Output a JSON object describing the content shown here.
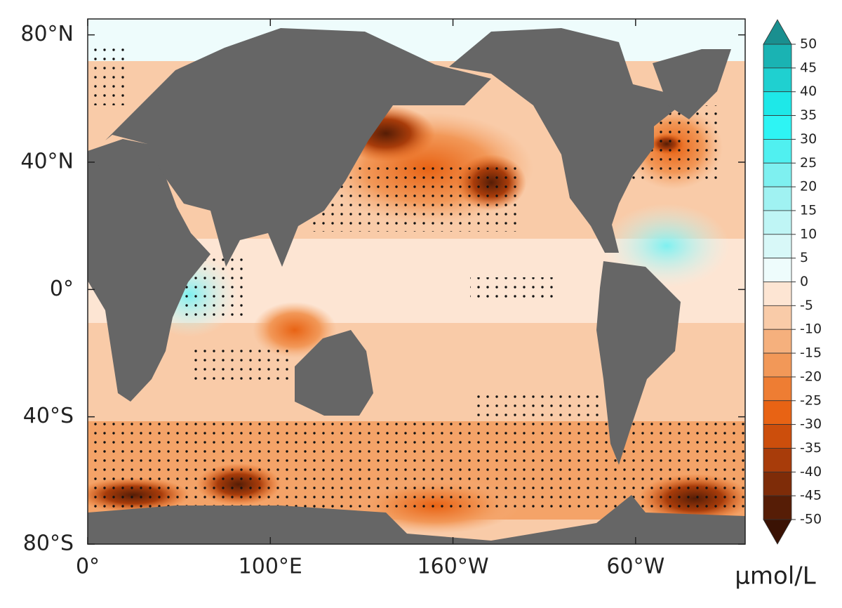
{
  "map": {
    "lat_lim": [
      -80,
      85
    ],
    "lon_lim": [
      0,
      360
    ],
    "lat_ticks": [
      {
        "value": 80,
        "label": "80°N"
      },
      {
        "value": 40,
        "label": "40°N"
      },
      {
        "value": 0,
        "label": "0°"
      },
      {
        "value": -40,
        "label": "40°S"
      },
      {
        "value": -80,
        "label": "80°S"
      }
    ],
    "lon_ticks": [
      {
        "value": 0,
        "label": "0°"
      },
      {
        "value": 100,
        "label": "100°E"
      },
      {
        "value": 200,
        "label": "160°W"
      },
      {
        "value": 300,
        "label": "60°W"
      }
    ],
    "colorbar": {
      "clim": [
        -50,
        50
      ],
      "ticks": [
        50,
        45,
        40,
        35,
        30,
        25,
        20,
        15,
        10,
        5,
        0,
        -5,
        -10,
        -15,
        -20,
        -25,
        -30,
        -35,
        -40,
        -45,
        -50
      ],
      "colors": [
        "#1ab3b3",
        "#1fd0d0",
        "#1ee8e8",
        "#2ef4f4",
        "#50f0f0",
        "#7ef0f0",
        "#a0f2f2",
        "#bff5f5",
        "#d8f8f8",
        "#eefcfc",
        "#fde5d3",
        "#f9cba8",
        "#f5b07d",
        "#f29858",
        "#ee7d33",
        "#e86314",
        "#cc4e0c",
        "#a83c0a",
        "#7e2c08",
        "#561d06"
      ],
      "extend_colors": {
        "high": "#1a8f8f",
        "low": "#3a1204"
      },
      "unit": "μmol/L"
    }
  }
}
